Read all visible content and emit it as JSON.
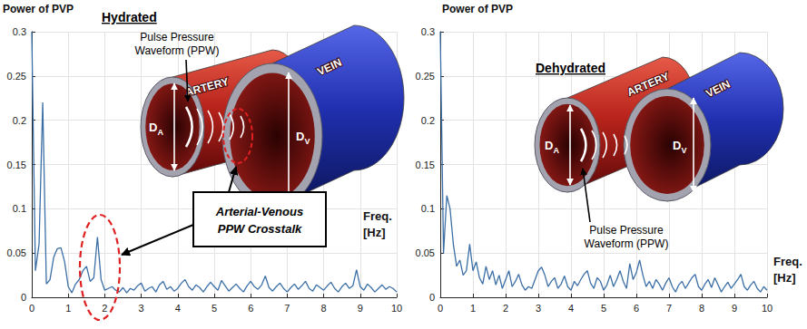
{
  "chart_data": [
    {
      "type": "line",
      "title": "Hydrated",
      "y_label": "Power of PVP",
      "x_label": "Freq. [Hz]",
      "x": [
        0,
        0.1,
        0.2,
        0.3,
        0.4,
        0.5,
        0.6,
        0.7,
        0.8,
        0.9,
        1,
        1.1,
        1.2,
        1.3,
        1.4,
        1.5,
        1.6,
        1.7,
        1.8,
        1.9,
        2,
        2.1,
        2.2,
        2.3,
        2.4,
        2.5,
        2.6,
        2.7,
        2.8,
        2.9,
        3,
        3.1,
        3.2,
        3.3,
        3.4,
        3.5,
        3.6,
        3.7,
        3.8,
        3.9,
        4,
        4.1,
        4.2,
        4.3,
        4.4,
        4.5,
        4.6,
        4.7,
        4.8,
        4.9,
        5,
        5.1,
        5.2,
        5.3,
        5.4,
        5.5,
        5.6,
        5.7,
        5.8,
        5.9,
        6,
        6.1,
        6.2,
        6.3,
        6.4,
        6.5,
        6.6,
        6.7,
        6.8,
        6.9,
        7,
        7.1,
        7.2,
        7.3,
        7.4,
        7.5,
        7.6,
        7.7,
        7.8,
        7.9,
        8,
        8.1,
        8.2,
        8.3,
        8.4,
        8.5,
        8.6,
        8.7,
        8.8,
        8.9,
        9,
        9.1,
        9.2,
        9.3,
        9.4,
        9.5,
        9.6,
        9.7,
        9.8,
        9.9,
        10
      ],
      "values": [
        0.3,
        0.03,
        0.06,
        0.22,
        0.015,
        0.02,
        0.045,
        0.055,
        0.056,
        0.04,
        0.012,
        0.005,
        0.015,
        0.02,
        0.03,
        0.035,
        0.018,
        0.022,
        0.068,
        0.02,
        0.008,
        0.01,
        0.012,
        0.008,
        0.006,
        0.011,
        0.005,
        0.01,
        0.008,
        0.013,
        0.016,
        0.007,
        0.01,
        0.012,
        0.006,
        0.014,
        0.018,
        0.009,
        0.012,
        0.007,
        0.01,
        0.016,
        0.02,
        0.012,
        0.008,
        0.014,
        0.011,
        0.006,
        0.012,
        0.017,
        0.012,
        0.008,
        0.019,
        0.013,
        0.007,
        0.011,
        0.015,
        0.01,
        0.006,
        0.013,
        0.018,
        0.012,
        0.009,
        0.014,
        0.024,
        0.011,
        0.007,
        0.012,
        0.016,
        0.01,
        0.006,
        0.011,
        0.015,
        0.009,
        0.013,
        0.018,
        0.01,
        0.007,
        0.014,
        0.011,
        0.008,
        0.013,
        0.017,
        0.01,
        0.006,
        0.012,
        0.016,
        0.01,
        0.013,
        0.031,
        0.012,
        0.008,
        0.015,
        0.011,
        0.006,
        0.01,
        0.014,
        0.009,
        0.012,
        0.01,
        0.006
      ],
      "color": "#3b6fa6",
      "xlim": [
        0,
        10
      ],
      "ylim": [
        0,
        0.3
      ],
      "xticks": [
        0,
        1,
        2,
        3,
        4,
        5,
        6,
        7,
        8,
        9,
        10
      ],
      "yticks": [
        0,
        0.05,
        0.1,
        0.15,
        0.2,
        0.25,
        0.3
      ],
      "grid": true,
      "annotations": [
        "Arterial-Venous PPW Crosstalk"
      ],
      "diagram": {
        "artery": "ARTERY",
        "vein": "VEIN",
        "artery_diameter": {
          "text": "D",
          "subscript": "A"
        },
        "vein_diameter": {
          "text": "D",
          "subscript": "V"
        },
        "wave_label": "Pulse Pressure Waveform (PPW)"
      }
    },
    {
      "type": "line",
      "title": "Dehydrated",
      "y_label": "Power of PVP",
      "x_label": "Freq. [Hz]",
      "x": [
        0,
        0.1,
        0.2,
        0.3,
        0.4,
        0.5,
        0.6,
        0.7,
        0.8,
        0.9,
        1,
        1.1,
        1.2,
        1.3,
        1.4,
        1.5,
        1.6,
        1.7,
        1.8,
        1.9,
        2,
        2.1,
        2.2,
        2.3,
        2.4,
        2.5,
        2.6,
        2.7,
        2.8,
        2.9,
        3,
        3.1,
        3.2,
        3.3,
        3.4,
        3.5,
        3.6,
        3.7,
        3.8,
        3.9,
        4,
        4.1,
        4.2,
        4.3,
        4.4,
        4.5,
        4.6,
        4.7,
        4.8,
        4.9,
        5,
        5.1,
        5.2,
        5.3,
        5.4,
        5.5,
        5.6,
        5.7,
        5.8,
        5.9,
        6,
        6.1,
        6.2,
        6.3,
        6.4,
        6.5,
        6.6,
        6.7,
        6.8,
        6.9,
        7,
        7.1,
        7.2,
        7.3,
        7.4,
        7.5,
        7.6,
        7.7,
        7.8,
        7.9,
        8,
        8.1,
        8.2,
        8.3,
        8.4,
        8.5,
        8.6,
        8.7,
        8.8,
        8.9,
        9,
        9.1,
        9.2,
        9.3,
        9.4,
        9.5,
        9.6,
        9.7,
        9.8,
        9.9,
        10
      ],
      "values": [
        0.3,
        0.05,
        0.115,
        0.1,
        0.06,
        0.035,
        0.042,
        0.025,
        0.03,
        0.06,
        0.03,
        0.04,
        0.022,
        0.015,
        0.035,
        0.02,
        0.03,
        0.014,
        0.025,
        0.01,
        0.02,
        0.03,
        0.012,
        0.018,
        0.026,
        0.014,
        0.008,
        0.012,
        0.01,
        0.02,
        0.03,
        0.034,
        0.025,
        0.012,
        0.018,
        0.022,
        0.01,
        0.015,
        0.024,
        0.012,
        0.008,
        0.018,
        0.013,
        0.02,
        0.026,
        0.03,
        0.016,
        0.01,
        0.022,
        0.018,
        0.008,
        0.014,
        0.025,
        0.012,
        0.02,
        0.03,
        0.018,
        0.01,
        0.038,
        0.02,
        0.028,
        0.042,
        0.025,
        0.012,
        0.018,
        0.01,
        0.02,
        0.015,
        0.008,
        0.016,
        0.022,
        0.012,
        0.006,
        0.014,
        0.018,
        0.01,
        0.016,
        0.022,
        0.026,
        0.012,
        0.008,
        0.015,
        0.02,
        0.011,
        0.022,
        0.014,
        0.006,
        0.012,
        0.017,
        0.01,
        0.015,
        0.02,
        0.026,
        0.012,
        0.008,
        0.014,
        0.018,
        0.01,
        0.006,
        0.012,
        0.008
      ],
      "color": "#3b6fa6",
      "xlim": [
        0,
        10
      ],
      "ylim": [
        0,
        0.3
      ],
      "xticks": [
        0,
        1,
        2,
        3,
        4,
        5,
        6,
        7,
        8,
        9,
        10
      ],
      "yticks": [
        0,
        0.05,
        0.1,
        0.15,
        0.2,
        0.25,
        0.3
      ],
      "grid": true,
      "diagram": {
        "artery": "ARTERY",
        "vein": "VEIN",
        "artery_diameter": {
          "text": "D",
          "subscript": "A"
        },
        "vein_diameter": {
          "text": "D",
          "subscript": "V"
        },
        "wave_label": "Pulse Pressure Waveform (PPW)"
      }
    }
  ]
}
